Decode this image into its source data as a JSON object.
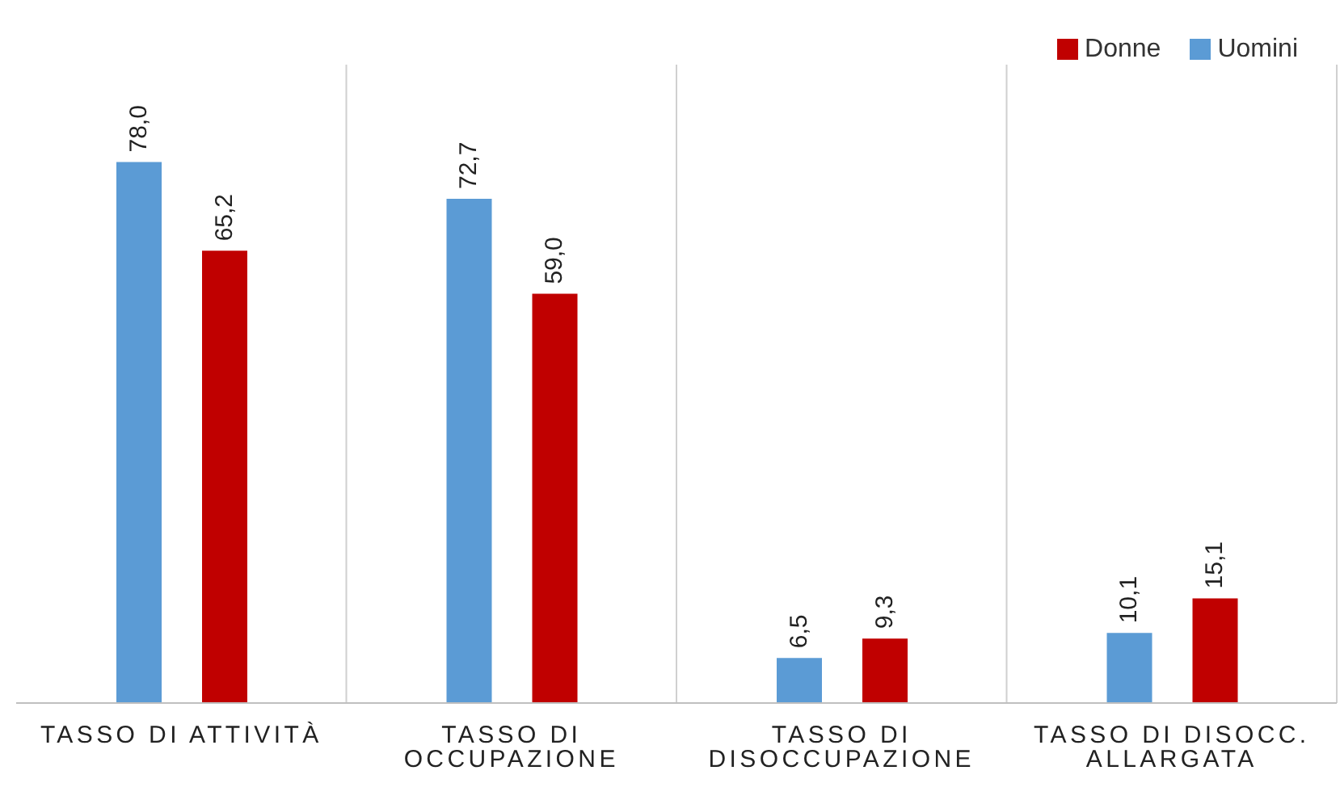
{
  "chart_data": {
    "type": "bar",
    "categories": [
      "TASSO DI ATTIVITÀ",
      "TASSO DI OCCUPAZIONE",
      "TASSO DI DISOCCUPAZIONE",
      "TASSO DI DISOCC. ALLARGATA"
    ],
    "series": [
      {
        "name": "Uomini",
        "color": "#5b9bd5",
        "values": [
          78.0,
          72.7,
          6.5,
          10.1
        ],
        "value_labels": [
          "78,0",
          "72,7",
          "6,5",
          "10,1"
        ]
      },
      {
        "name": "Donne",
        "color": "#c00000",
        "values": [
          65.2,
          59.0,
          9.3,
          15.1
        ],
        "value_labels": [
          "65,2",
          "59,0",
          "9,3",
          "15,1"
        ]
      }
    ],
    "grid": "x",
    "legend": "top right",
    "tick_labels": "x"
  }
}
